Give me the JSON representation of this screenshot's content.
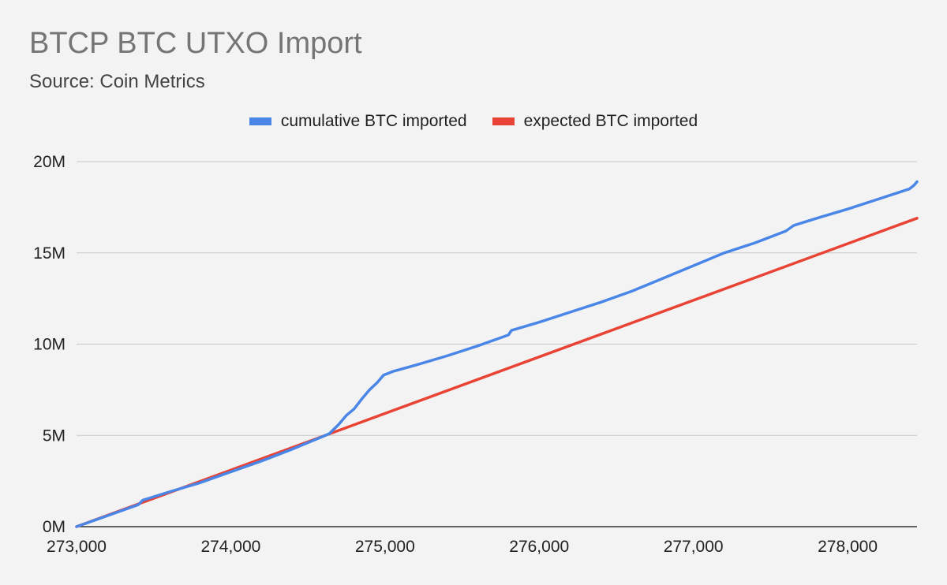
{
  "chart_data": {
    "type": "line",
    "title": "BTCP BTC UTXO Import",
    "subtitle": "Source: Coin Metrics",
    "xlabel": "",
    "ylabel": "",
    "xlim": [
      273000,
      278450
    ],
    "ylim": [
      0,
      20000000
    ],
    "x_ticks": [
      273000,
      274000,
      275000,
      276000,
      277000,
      278000
    ],
    "x_tick_labels": [
      "273,000",
      "274,000",
      "275,000",
      "276,000",
      "277,000",
      "278,000"
    ],
    "y_ticks": [
      0,
      5000000,
      10000000,
      15000000,
      20000000
    ],
    "y_tick_labels": [
      "0M",
      "5M",
      "10M",
      "15M",
      "20M"
    ],
    "grid": "horizontal",
    "legend_position": "top",
    "series": [
      {
        "name": "cumulative BTC imported",
        "color": "#4a86e8",
        "points": [
          [
            273000,
            0
          ],
          [
            273200,
            600000
          ],
          [
            273400,
            1200000
          ],
          [
            273430,
            1450000
          ],
          [
            273600,
            1900000
          ],
          [
            273800,
            2400000
          ],
          [
            274000,
            3000000
          ],
          [
            274200,
            3600000
          ],
          [
            274400,
            4250000
          ],
          [
            274600,
            4950000
          ],
          [
            274640,
            5100000
          ],
          [
            274700,
            5600000
          ],
          [
            274750,
            6100000
          ],
          [
            274800,
            6450000
          ],
          [
            274850,
            7000000
          ],
          [
            274900,
            7500000
          ],
          [
            274950,
            7900000
          ],
          [
            274990,
            8300000
          ],
          [
            275050,
            8500000
          ],
          [
            275200,
            8850000
          ],
          [
            275400,
            9350000
          ],
          [
            275600,
            9900000
          ],
          [
            275800,
            10500000
          ],
          [
            275820,
            10750000
          ],
          [
            276000,
            11200000
          ],
          [
            276200,
            11750000
          ],
          [
            276400,
            12300000
          ],
          [
            276600,
            12900000
          ],
          [
            276800,
            13600000
          ],
          [
            277000,
            14300000
          ],
          [
            277200,
            15000000
          ],
          [
            277400,
            15550000
          ],
          [
            277600,
            16200000
          ],
          [
            277650,
            16500000
          ],
          [
            277800,
            16900000
          ],
          [
            278000,
            17400000
          ],
          [
            278200,
            17950000
          ],
          [
            278400,
            18500000
          ],
          [
            278430,
            18700000
          ],
          [
            278450,
            18900000
          ]
        ]
      },
      {
        "name": "expected BTC imported",
        "color": "#e94335",
        "points": [
          [
            273000,
            0
          ],
          [
            278450,
            16900000
          ]
        ]
      }
    ]
  }
}
